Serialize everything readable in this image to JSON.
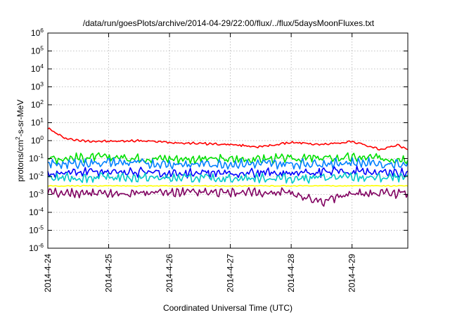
{
  "chart_data": {
    "type": "line",
    "title": "/data/run/goesPlots/archive/2014-04-29/22:00/flux/../flux/5daysMoonFluxes.txt",
    "xlabel": "Coordinated Universal Time (UTC)",
    "ylabel": "protons/cm2-s-sr-MeV",
    "ylabel_parts": {
      "before": "protons/cm",
      "sup": "2",
      "after": "-s-sr-MeV"
    },
    "x_ticks": [
      "2014-4-24",
      "2014-4-25",
      "2014-4-26",
      "2014-4-27",
      "2014-4-28",
      "2014-4-29"
    ],
    "xlim": [
      "2014-4-24 00:00",
      "2014-4-29 22:00"
    ],
    "yscale": "log",
    "ylim": [
      1e-06,
      1000000.0
    ],
    "y_ticks": [
      {
        "base": "10",
        "exp": "6",
        "value": 1000000.0
      },
      {
        "base": "10",
        "exp": "5",
        "value": 100000.0
      },
      {
        "base": "10",
        "exp": "4",
        "value": 10000.0
      },
      {
        "base": "10",
        "exp": "3",
        "value": 1000.0
      },
      {
        "base": "10",
        "exp": "2",
        "value": 100.0
      },
      {
        "base": "10",
        "exp": "1",
        "value": 10.0
      },
      {
        "base": "10",
        "exp": "0",
        "value": 1.0
      },
      {
        "base": "10",
        "exp": "-1",
        "value": 0.1
      },
      {
        "base": "10",
        "exp": "-2",
        "value": 0.01
      },
      {
        "base": "10",
        "exp": "-3",
        "value": 0.001
      },
      {
        "base": "10",
        "exp": "-4",
        "value": 0.0001
      },
      {
        "base": "10",
        "exp": "-5",
        "value": 1e-05
      },
      {
        "base": "10",
        "exp": "-6",
        "value": 1e-06
      }
    ],
    "grid": true,
    "legend": "none",
    "series": [
      {
        "color": "#ff0000",
        "x": [
          "2014-4-24 00:00",
          "2014-4-24 06:00",
          "2014-4-24 12:00",
          "2014-4-25 00:00",
          "2014-4-25 12:00",
          "2014-4-26 00:00",
          "2014-4-26 12:00",
          "2014-4-27 00:00",
          "2014-4-27 12:00",
          "2014-4-28 00:00",
          "2014-4-28 12:00",
          "2014-4-29 00:00",
          "2014-4-29 12:00",
          "2014-4-29 18:00",
          "2014-4-29 22:00"
        ],
        "values": [
          5,
          1.5,
          1.0,
          0.9,
          1.0,
          0.8,
          0.7,
          0.6,
          0.45,
          0.8,
          0.6,
          0.9,
          0.3,
          0.6,
          0.3
        ]
      },
      {
        "color": "#00e000",
        "x": [
          "2014-4-24 00:00",
          "2014-4-25 00:00",
          "2014-4-26 00:00",
          "2014-4-27 00:00",
          "2014-4-28 00:00",
          "2014-4-29 00:00",
          "2014-4-29 22:00"
        ],
        "values": [
          0.1,
          0.12,
          0.1,
          0.09,
          0.1,
          0.11,
          0.1
        ]
      },
      {
        "color": "#0080ff",
        "x": [
          "2014-4-24 00:00",
          "2014-4-25 00:00",
          "2014-4-26 00:00",
          "2014-4-27 00:00",
          "2014-4-28 00:00",
          "2014-4-29 00:00",
          "2014-4-29 22:00"
        ],
        "values": [
          0.05,
          0.06,
          0.05,
          0.05,
          0.05,
          0.06,
          0.05
        ]
      },
      {
        "color": "#0000ff",
        "x": [
          "2014-4-24 00:00",
          "2014-4-25 00:00",
          "2014-4-26 00:00",
          "2014-4-27 00:00",
          "2014-4-28 00:00",
          "2014-4-29 00:00",
          "2014-4-29 22:00"
        ],
        "values": [
          0.015,
          0.02,
          0.015,
          0.015,
          0.015,
          0.02,
          0.015
        ]
      },
      {
        "color": "#00c8c8",
        "x": [
          "2014-4-24 00:00",
          "2014-4-25 00:00",
          "2014-4-26 00:00",
          "2014-4-27 00:00",
          "2014-4-28 00:00",
          "2014-4-29 00:00",
          "2014-4-29 22:00"
        ],
        "values": [
          0.008,
          0.009,
          0.008,
          0.008,
          0.008,
          0.009,
          0.008
        ]
      },
      {
        "color": "#ffff00",
        "x": [
          "2014-4-24 00:00",
          "2014-4-25 00:00",
          "2014-4-26 00:00",
          "2014-4-27 00:00",
          "2014-4-28 00:00",
          "2014-4-29 00:00",
          "2014-4-29 22:00"
        ],
        "values": [
          0.003,
          0.003,
          0.003,
          0.003,
          0.003,
          0.003,
          0.003
        ]
      },
      {
        "color": "#800060",
        "x": [
          "2014-4-24 00:00",
          "2014-4-25 00:00",
          "2014-4-26 00:00",
          "2014-4-27 00:00",
          "2014-4-28 00:00",
          "2014-4-28 12:00",
          "2014-4-29 00:00",
          "2014-4-29 22:00"
        ],
        "values": [
          0.0012,
          0.0012,
          0.0012,
          0.0012,
          0.0012,
          0.0004,
          0.0012,
          0.0012
        ]
      }
    ]
  }
}
